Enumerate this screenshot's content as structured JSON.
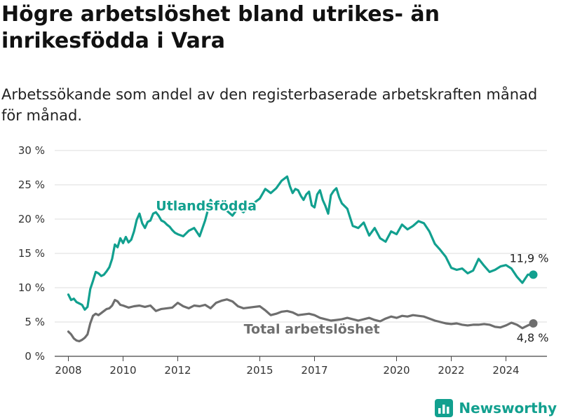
{
  "title": "Högre arbetslöshet bland utrikes- än inrikesfödda i Vara",
  "subtitle": "Arbetssökande som andel av den registerbaserade arbetskraften månad för månad.",
  "brand": "Newsworthy",
  "colors": {
    "utlandsfodda": "#12a08f",
    "total": "#6e6e6e",
    "grid": "#dddddd"
  },
  "chart_data": {
    "type": "line",
    "xlim": [
      2007.5,
      2025.5
    ],
    "ylim": [
      0,
      30
    ],
    "y_ticks": [
      0,
      5,
      10,
      15,
      20,
      25,
      30
    ],
    "y_tick_labels": [
      "0 %",
      "5 %",
      "10 %",
      "15 %",
      "20 %",
      "25 %",
      "30 %"
    ],
    "x_ticks": [
      2008,
      2010,
      2012,
      2015,
      2017,
      2020,
      2022,
      2024
    ],
    "x_tick_labels": [
      "2008",
      "2010",
      "2012",
      "2015",
      "2017",
      "2020",
      "2022",
      "2024"
    ],
    "grid": true,
    "series": [
      {
        "name": "Utlandsfödda",
        "color": "#12a08f",
        "end_label": "11,9 %",
        "x": [
          2008.0,
          2008.1,
          2008.2,
          2008.3,
          2008.4,
          2008.5,
          2008.6,
          2008.7,
          2008.8,
          2008.9,
          2009.0,
          2009.1,
          2009.2,
          2009.3,
          2009.4,
          2009.5,
          2009.6,
          2009.7,
          2009.8,
          2009.9,
          2010.0,
          2010.1,
          2010.2,
          2010.3,
          2010.4,
          2010.5,
          2010.6,
          2010.7,
          2010.8,
          2010.9,
          2011.0,
          2011.1,
          2011.2,
          2011.3,
          2011.4,
          2011.5,
          2011.6,
          2011.7,
          2011.8,
          2011.9,
          2012.0,
          2012.2,
          2012.4,
          2012.6,
          2012.8,
          2013.0,
          2013.2,
          2013.4,
          2013.6,
          2013.8,
          2014.0,
          2014.2,
          2014.4,
          2014.6,
          2014.8,
          2015.0,
          2015.2,
          2015.4,
          2015.6,
          2015.8,
          2016.0,
          2016.1,
          2016.2,
          2016.3,
          2016.4,
          2016.5,
          2016.6,
          2016.7,
          2016.8,
          2016.9,
          2017.0,
          2017.1,
          2017.2,
          2017.3,
          2017.4,
          2017.5,
          2017.6,
          2017.7,
          2017.8,
          2017.9,
          2018.0,
          2018.2,
          2018.4,
          2018.6,
          2018.8,
          2019.0,
          2019.2,
          2019.4,
          2019.6,
          2019.8,
          2020.0,
          2020.2,
          2020.4,
          2020.6,
          2020.8,
          2021.0,
          2021.2,
          2021.4,
          2021.6,
          2021.8,
          2022.0,
          2022.2,
          2022.4,
          2022.6,
          2022.8,
          2023.0,
          2023.2,
          2023.4,
          2023.6,
          2023.8,
          2024.0,
          2024.2,
          2024.4,
          2024.6,
          2024.8,
          2025.0
        ],
        "values": [
          9.0,
          8.2,
          8.4,
          7.9,
          7.7,
          7.5,
          6.8,
          7.2,
          9.8,
          11.0,
          12.3,
          12.1,
          11.7,
          11.9,
          12.4,
          13.0,
          14.2,
          16.3,
          15.9,
          17.2,
          16.5,
          17.4,
          16.6,
          17.0,
          18.2,
          19.9,
          20.8,
          19.4,
          18.7,
          19.6,
          19.8,
          20.8,
          21.0,
          20.5,
          19.8,
          19.6,
          19.2,
          18.9,
          18.4,
          18.0,
          17.8,
          17.5,
          18.3,
          18.7,
          17.5,
          19.8,
          22.8,
          21.5,
          21.8,
          21.2,
          20.5,
          21.6,
          21.0,
          21.8,
          22.4,
          23.0,
          24.4,
          23.8,
          24.5,
          25.6,
          26.2,
          24.8,
          23.8,
          24.4,
          24.2,
          23.4,
          22.8,
          23.6,
          24.0,
          22.0,
          21.7,
          23.6,
          24.2,
          22.8,
          21.9,
          20.8,
          23.5,
          24.1,
          24.5,
          23.2,
          22.3,
          21.5,
          19.0,
          18.7,
          19.5,
          17.6,
          18.7,
          17.2,
          16.7,
          18.2,
          17.8,
          19.2,
          18.5,
          19.0,
          19.7,
          19.4,
          18.2,
          16.4,
          15.5,
          14.5,
          12.9,
          12.6,
          12.8,
          12.1,
          12.5,
          14.2,
          13.2,
          12.3,
          12.6,
          13.1,
          13.3,
          12.8,
          11.6,
          10.7,
          11.9,
          11.9
        ]
      },
      {
        "name": "Total arbetslöshet",
        "color": "#6e6e6e",
        "end_label": "4,8 %",
        "x": [
          2008.0,
          2008.1,
          2008.2,
          2008.3,
          2008.4,
          2008.5,
          2008.6,
          2008.7,
          2008.8,
          2008.9,
          2009.0,
          2009.1,
          2009.2,
          2009.3,
          2009.4,
          2009.5,
          2009.6,
          2009.7,
          2009.8,
          2009.9,
          2010.0,
          2010.2,
          2010.4,
          2010.6,
          2010.8,
          2011.0,
          2011.2,
          2011.4,
          2011.6,
          2011.8,
          2012.0,
          2012.2,
          2012.4,
          2012.6,
          2012.8,
          2013.0,
          2013.2,
          2013.4,
          2013.6,
          2013.8,
          2014.0,
          2014.2,
          2014.4,
          2014.6,
          2014.8,
          2015.0,
          2015.2,
          2015.4,
          2015.6,
          2015.8,
          2016.0,
          2016.2,
          2016.4,
          2016.6,
          2016.8,
          2017.0,
          2017.2,
          2017.4,
          2017.6,
          2017.8,
          2018.0,
          2018.2,
          2018.4,
          2018.6,
          2018.8,
          2019.0,
          2019.2,
          2019.4,
          2019.6,
          2019.8,
          2020.0,
          2020.2,
          2020.4,
          2020.6,
          2020.8,
          2021.0,
          2021.2,
          2021.4,
          2021.6,
          2021.8,
          2022.0,
          2022.2,
          2022.4,
          2022.6,
          2022.8,
          2023.0,
          2023.2,
          2023.4,
          2023.6,
          2023.8,
          2024.0,
          2024.2,
          2024.4,
          2024.6,
          2024.8,
          2025.0
        ],
        "values": [
          3.6,
          3.2,
          2.6,
          2.3,
          2.2,
          2.4,
          2.7,
          3.2,
          4.8,
          5.9,
          6.2,
          6.0,
          6.3,
          6.6,
          6.9,
          7.0,
          7.4,
          8.2,
          8.0,
          7.5,
          7.4,
          7.1,
          7.3,
          7.4,
          7.2,
          7.4,
          6.6,
          6.9,
          7.0,
          7.1,
          7.8,
          7.3,
          7.0,
          7.4,
          7.3,
          7.5,
          7.0,
          7.8,
          8.1,
          8.3,
          8.0,
          7.3,
          7.0,
          7.1,
          7.2,
          7.3,
          6.7,
          6.0,
          6.2,
          6.5,
          6.6,
          6.4,
          6.0,
          6.1,
          6.2,
          6.0,
          5.6,
          5.4,
          5.2,
          5.3,
          5.4,
          5.6,
          5.4,
          5.2,
          5.4,
          5.6,
          5.3,
          5.1,
          5.5,
          5.8,
          5.6,
          5.9,
          5.8,
          6.0,
          5.9,
          5.8,
          5.5,
          5.2,
          5.0,
          4.8,
          4.7,
          4.8,
          4.6,
          4.5,
          4.6,
          4.6,
          4.7,
          4.6,
          4.3,
          4.2,
          4.5,
          4.9,
          4.6,
          4.1,
          4.5,
          4.8
        ]
      }
    ]
  }
}
